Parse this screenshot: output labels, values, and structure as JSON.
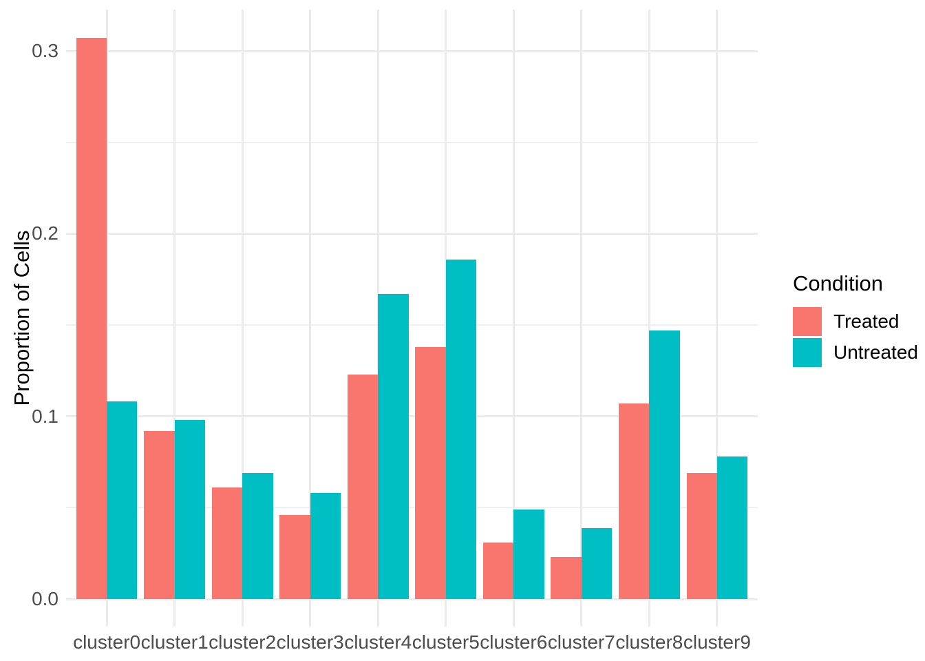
{
  "chart_data": {
    "type": "bar",
    "grouped": true,
    "title": "",
    "xlabel": "",
    "ylabel": "Proportion of Cells",
    "categories": [
      "cluster0",
      "cluster1",
      "cluster2",
      "cluster3",
      "cluster4",
      "cluster5",
      "cluster6",
      "cluster7",
      "cluster8",
      "cluster9"
    ],
    "series": [
      {
        "name": "Treated",
        "color": "#F8766D",
        "values": [
          0.307,
          0.092,
          0.061,
          0.046,
          0.123,
          0.138,
          0.031,
          0.023,
          0.107,
          0.069
        ]
      },
      {
        "name": "Untreated",
        "color": "#00BFC4",
        "values": [
          0.108,
          0.098,
          0.069,
          0.058,
          0.167,
          0.186,
          0.049,
          0.039,
          0.147,
          0.078
        ]
      }
    ],
    "y_ticks": [
      {
        "label": "0.0",
        "value": 0.0
      },
      {
        "label": "0.1",
        "value": 0.1
      },
      {
        "label": "0.2",
        "value": 0.2
      },
      {
        "label": "0.3",
        "value": 0.3
      }
    ],
    "y_minor_values": [
      0.05,
      0.15,
      0.25
    ],
    "ylim": [
      -0.01506,
      0.32262
    ],
    "legend": {
      "title": "Condition",
      "position": "right"
    },
    "grid": true,
    "colors": {
      "background": "#FFFFFF",
      "grid_major": "#EBEBEB",
      "grid_minor": "#EFEFEF",
      "tick_label": "#4D4D4D",
      "axis_title": "#000000"
    }
  }
}
